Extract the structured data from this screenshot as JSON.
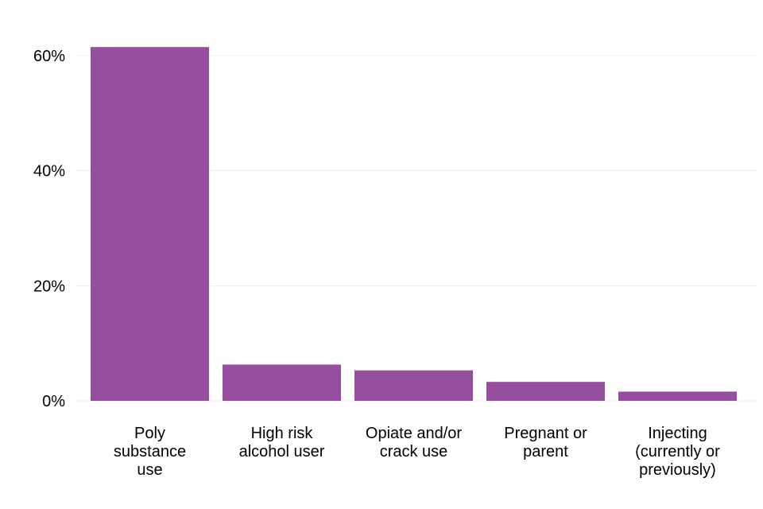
{
  "chart_data": {
    "type": "bar",
    "categories": [
      [
        "Poly",
        "substance",
        "use"
      ],
      [
        "High risk",
        "alcohol user"
      ],
      [
        "Opiate and/or",
        "crack use"
      ],
      [
        "Pregnant or",
        "parent"
      ],
      [
        "Injecting",
        "(currently or",
        "previously)"
      ]
    ],
    "values": [
      61.5,
      6.3,
      5.3,
      3.3,
      1.6
    ],
    "value_unit": "%",
    "ylim": [
      0,
      60
    ],
    "yticks": [
      0,
      20,
      40,
      60
    ],
    "ytick_labels": [
      "0%",
      "20%",
      "40%",
      "60%"
    ],
    "grid": true,
    "legend": "none",
    "title": "",
    "xlabel": "",
    "ylabel": "",
    "colors": {
      "bar": "#954F9E",
      "grid": "#EBEBEB",
      "text": "#000000"
    }
  }
}
